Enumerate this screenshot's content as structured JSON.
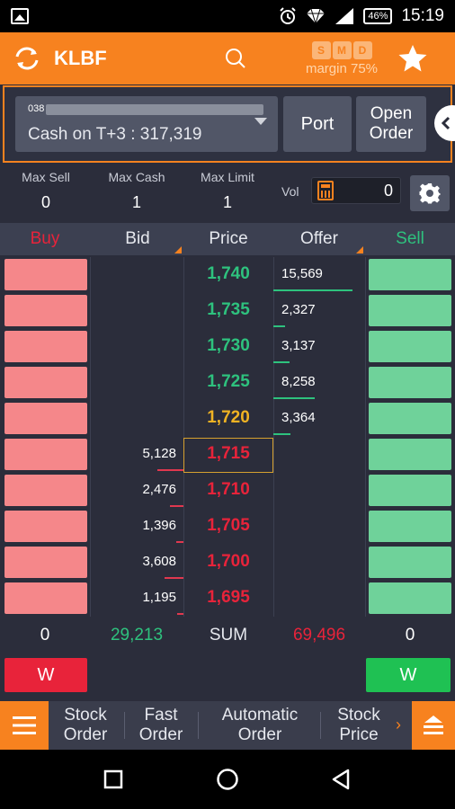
{
  "status_bar": {
    "time": "15:19",
    "battery": "46%"
  },
  "header": {
    "symbol": "KLBF",
    "chips": [
      "S",
      "M",
      "D"
    ],
    "margin": "margin 75%"
  },
  "account": {
    "account_no": "038",
    "cash_label": "Cash on T+3 : 317,319",
    "port_label": "Port",
    "open_order_line1": "Open",
    "open_order_line2": "Order"
  },
  "limits": {
    "max_sell_label": "Max Sell",
    "max_sell": "0",
    "max_cash_label": "Max Cash",
    "max_cash": "1",
    "max_limit_label": "Max Limit",
    "max_limit": "1",
    "vol_label": "Vol",
    "vol_value": "0"
  },
  "columns": {
    "buy": "Buy",
    "bid": "Bid",
    "price": "Price",
    "offer": "Offer",
    "sell": "Sell"
  },
  "colors": {
    "up": "#2ec27e",
    "flat": "#f0b323",
    "down": "#e8233a",
    "accent": "#f7821f"
  },
  "book": [
    {
      "bid": "",
      "price": "1,740",
      "offer": "15,569",
      "tone": "up",
      "bid_level": 0,
      "offer_level": 1.0
    },
    {
      "bid": "",
      "price": "1,735",
      "offer": "2,327",
      "tone": "up",
      "bid_level": 0,
      "offer_level": 0.15
    },
    {
      "bid": "",
      "price": "1,730",
      "offer": "3,137",
      "tone": "up",
      "bid_level": 0,
      "offer_level": 0.2
    },
    {
      "bid": "",
      "price": "1,725",
      "offer": "8,258",
      "tone": "up",
      "bid_level": 0,
      "offer_level": 0.53
    },
    {
      "bid": "",
      "price": "1,720",
      "offer": "3,364",
      "tone": "flat",
      "bid_level": 0,
      "offer_level": 0.22
    },
    {
      "bid": "5,128",
      "price": "1,715",
      "offer": "",
      "tone": "down",
      "bid_level": 0.28,
      "offer_level": 0
    },
    {
      "bid": "2,476",
      "price": "1,710",
      "offer": "",
      "tone": "down",
      "bid_level": 0.14,
      "offer_level": 0
    },
    {
      "bid": "1,396",
      "price": "1,705",
      "offer": "",
      "tone": "down",
      "bid_level": 0.08,
      "offer_level": 0
    },
    {
      "bid": "3,608",
      "price": "1,700",
      "offer": "",
      "tone": "down",
      "bid_level": 0.2,
      "offer_level": 0
    },
    {
      "bid": "1,195",
      "price": "1,695",
      "offer": "",
      "tone": "down",
      "bid_level": 0.07,
      "offer_level": 0
    }
  ],
  "sum": {
    "buy": "0",
    "bid": "29,213",
    "label": "SUM",
    "offer": "69,496",
    "sell": "0"
  },
  "withdraw": {
    "buy_label": "W",
    "sell_label": "W"
  },
  "bottom_menu": {
    "items": [
      {
        "line1": "Stock",
        "line2": "Order"
      },
      {
        "line1": "Fast",
        "line2": "Order"
      },
      {
        "line1": "Automatic",
        "line2": "Order"
      },
      {
        "line1": "Stock",
        "line2": "Price"
      }
    ],
    "more_arrow": "›"
  }
}
